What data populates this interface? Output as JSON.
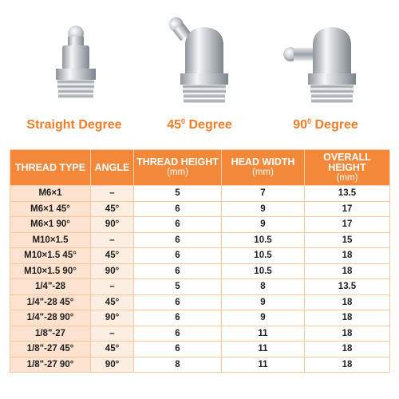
{
  "products": [
    {
      "label_base": "Straight Degree",
      "label_sup": "",
      "label_suffix": "",
      "icon": "straight-grease-fitting-icon"
    },
    {
      "label_base": "45",
      "label_sup": "0",
      "label_suffix": " Degree",
      "icon": "45-degree-grease-fitting-icon"
    },
    {
      "label_base": "90",
      "label_sup": "0",
      "label_suffix": " Degree",
      "icon": "90-degree-grease-fitting-icon"
    }
  ],
  "colors": {
    "accent": "#f3883a",
    "label": "#f07c2a",
    "type_cell": "#fde3cf",
    "angle_cell": "#fdeee2"
  },
  "table": {
    "headers": [
      {
        "title": "THREAD TYPE",
        "unit": ""
      },
      {
        "title": "ANGLE",
        "unit": ""
      },
      {
        "title": "THREAD HEIGHT",
        "unit": "(mm)"
      },
      {
        "title": "HEAD WIDTH",
        "unit": "(mm)"
      },
      {
        "title": "OVERALL HEIGHT",
        "unit": "(mm)"
      }
    ],
    "rows": [
      [
        "M6×1",
        "–",
        "5",
        "7",
        "13.5"
      ],
      [
        "M6×1 45°",
        "45°",
        "6",
        "9",
        "17"
      ],
      [
        "M6×1 90°",
        "90°",
        "6",
        "9",
        "17"
      ],
      [
        "M10×1.5",
        "–",
        "6",
        "10.5",
        "15"
      ],
      [
        "M10×1.5  45°",
        "45°",
        "6",
        "10.5",
        "18"
      ],
      [
        "M10×1.5  90°",
        "90°",
        "6",
        "10.5",
        "18"
      ],
      [
        "1/4\"-28",
        "–",
        "5",
        "8",
        "13.5"
      ],
      [
        "1/4\"-28 45°",
        "45°",
        "6",
        "9",
        "18"
      ],
      [
        "1/4\"-28 90°",
        "90°",
        "6",
        "9",
        "18"
      ],
      [
        "1/8\"-27",
        "–",
        "6",
        "11",
        "18"
      ],
      [
        "1/8\"-27 45°",
        "45°",
        "6",
        "11",
        "18"
      ],
      [
        "1/8\"-27 90°",
        "90°",
        "8",
        "11",
        "18"
      ]
    ]
  }
}
